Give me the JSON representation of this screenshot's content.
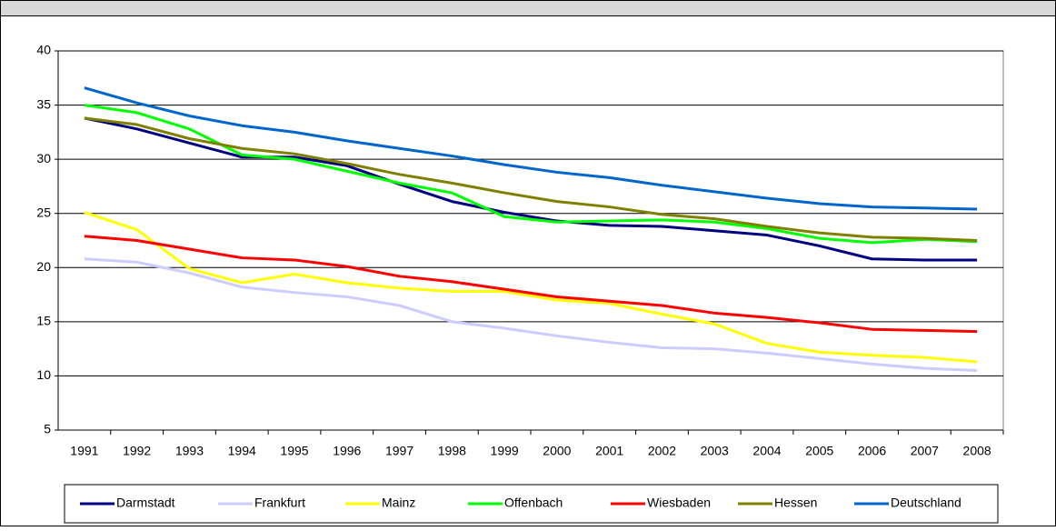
{
  "chart_data": {
    "type": "line",
    "categories": [
      "1991",
      "1992",
      "1993",
      "1994",
      "1995",
      "1996",
      "1997",
      "1998",
      "1999",
      "2000",
      "2001",
      "2002",
      "2003",
      "2004",
      "2005",
      "2006",
      "2007",
      "2008"
    ],
    "series": [
      {
        "name": "Darmstadt",
        "color": "#000080",
        "values": [
          33.8,
          32.8,
          31.5,
          30.2,
          30.2,
          29.4,
          27.7,
          26.1,
          25.1,
          24.3,
          23.9,
          23.8,
          23.4,
          23.0,
          22.0,
          20.8,
          20.7,
          20.7
        ]
      },
      {
        "name": "Frankfurt",
        "color": "#ccccff",
        "values": [
          20.8,
          20.5,
          19.5,
          18.2,
          17.7,
          17.3,
          16.5,
          15.0,
          14.4,
          13.7,
          13.1,
          12.6,
          12.5,
          12.1,
          11.6,
          11.1,
          10.7,
          10.5
        ]
      },
      {
        "name": "Mainz",
        "color": "#ffff00",
        "values": [
          25.1,
          23.5,
          19.9,
          18.6,
          19.4,
          18.6,
          18.1,
          17.8,
          17.8,
          17.0,
          16.7,
          15.7,
          14.8,
          13.0,
          12.2,
          11.9,
          11.7,
          11.3
        ]
      },
      {
        "name": "Offenbach",
        "color": "#00ff00",
        "values": [
          35.0,
          34.3,
          32.8,
          30.4,
          30.0,
          28.9,
          27.8,
          26.9,
          24.7,
          24.2,
          24.3,
          24.4,
          24.2,
          23.6,
          22.7,
          22.3,
          22.6,
          22.4
        ]
      },
      {
        "name": "Wiesbaden",
        "color": "#ff0000",
        "values": [
          22.9,
          22.5,
          21.7,
          20.9,
          20.7,
          20.1,
          19.2,
          18.7,
          18.0,
          17.3,
          16.9,
          16.5,
          15.8,
          15.4,
          14.9,
          14.3,
          14.2,
          14.1
        ]
      },
      {
        "name": "Hessen",
        "color": "#808000",
        "values": [
          33.8,
          33.2,
          31.9,
          31.0,
          30.5,
          29.6,
          28.6,
          27.8,
          26.9,
          26.1,
          25.6,
          24.9,
          24.5,
          23.8,
          23.2,
          22.8,
          22.7,
          22.5
        ]
      },
      {
        "name": "Deutschland",
        "color": "#0066cc",
        "values": [
          36.6,
          35.2,
          34.0,
          33.1,
          32.5,
          31.7,
          31.0,
          30.3,
          29.5,
          28.8,
          28.3,
          27.6,
          27.0,
          26.4,
          25.9,
          25.6,
          25.5,
          25.4
        ]
      }
    ],
    "ylim": [
      5,
      40
    ],
    "yticks": [
      5,
      10,
      15,
      20,
      25,
      30,
      35,
      40
    ],
    "grid": true,
    "legend": "bottom"
  }
}
